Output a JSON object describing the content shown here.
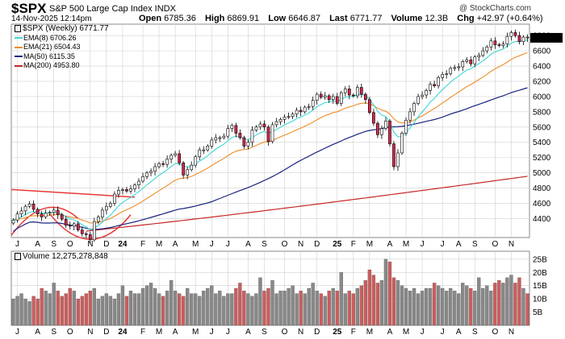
{
  "header": {
    "symbol": "$SPX",
    "name": "S&P 500 Large Cap Index  INDX",
    "copyright": "@ StockCharts.com",
    "date": "14-Nov-2025 12:14pm",
    "open_label": "Open",
    "open": "6785.36",
    "high_label": "High",
    "high": "6869.91",
    "low_label": "Low",
    "low": "6646.87",
    "last_label": "Last",
    "last": "6771.77",
    "volume_label": "Volume",
    "volume": "12.3B",
    "chg_label": "Chg",
    "chg": "+42.97 (+0.64%)"
  },
  "legend": {
    "main": "$SPX (Weekly) 6771.77",
    "ema8": "EMA(8) 6706.26",
    "ema21": "EMA(21) 6504.43",
    "ma50": "MA(50) 6115.35",
    "ma200": "MA(200) 4953.80"
  },
  "volume_legend": "Volume 12,275,278,848",
  "colors": {
    "up_candle": "#ffffff",
    "down_candle": "#d4264a",
    "ema8": "#3fd6d6",
    "ema21": "#f08c28",
    "ma50": "#1a237e",
    "ma200": "#c62828",
    "trendline": "#e53935",
    "grid": "#d0d0d0",
    "vol_up": "#888888",
    "vol_down": "#cd5c5c",
    "last_marker": "#f2c100"
  },
  "chart_data": {
    "type": "candlestick",
    "price_axis": {
      "ticks": [
        4400,
        4600,
        4800,
        5000,
        5200,
        5400,
        5600,
        5800,
        6000,
        6200,
        6400,
        6600,
        6800
      ],
      "range": [
        4150,
        6950
      ]
    },
    "volume_axis": {
      "ticks": [
        "5B",
        "10B",
        "15B",
        "20B",
        "25B"
      ],
      "values": [
        5,
        10,
        15,
        20,
        25
      ],
      "range": [
        0,
        28
      ]
    },
    "x_labels": [
      "J",
      "A",
      "S",
      "O",
      "N",
      "D",
      "24",
      "F",
      "M",
      "A",
      "M",
      "J",
      "J",
      "A",
      "S",
      "O",
      "N",
      "D",
      "25",
      "F",
      "M",
      "A",
      "M",
      "J",
      "J",
      "A",
      "S",
      "O",
      "N"
    ],
    "x_label_weeks": [
      1,
      6,
      10,
      14,
      19,
      23,
      27,
      32,
      36,
      40,
      45,
      49,
      53,
      58,
      62,
      67,
      71,
      75,
      80,
      84,
      88,
      93,
      97,
      101,
      106,
      110,
      114,
      119,
      123
    ],
    "num_weeks": 128,
    "closes": [
      4380,
      4460,
      4500,
      4560,
      4590,
      4520,
      4460,
      4420,
      4470,
      4480,
      4510,
      4450,
      4390,
      4310,
      4300,
      4330,
      4250,
      4200,
      4190,
      4120,
      4360,
      4420,
      4510,
      4560,
      4600,
      4720,
      4770,
      4780,
      4760,
      4790,
      4840,
      4890,
      4950,
      5000,
      5020,
      5080,
      5120,
      5110,
      5180,
      5230,
      5250,
      5130,
      4970,
      5040,
      5100,
      5210,
      5300,
      5300,
      5350,
      5430,
      5460,
      5460,
      5480,
      5580,
      5620,
      5520,
      5460,
      5350,
      5400,
      5560,
      5600,
      5640,
      5600,
      5410,
      5630,
      5670,
      5700,
      5730,
      5740,
      5770,
      5820,
      5800,
      5860,
      5870,
      5950,
      6030,
      5990,
      6010,
      5960,
      6000,
      5910,
      6050,
      6100,
      6020,
      6010,
      6120,
      6030,
      5960,
      5790,
      5650,
      5500,
      5580,
      5680,
      5380,
      5080,
      5260,
      5520,
      5690,
      5800,
      5910,
      6000,
      6020,
      6080,
      6160,
      6140,
      6250,
      6290,
      6300,
      6370,
      6380,
      6390,
      6460,
      6480,
      6430,
      6520,
      6540,
      6600,
      6650,
      6730,
      6680,
      6670,
      6690,
      6790,
      6840,
      6800,
      6720,
      6780,
      6771
    ],
    "ema8_last": 6706.26,
    "ema21_last": 6504.43,
    "ma50_last": 6115.35,
    "ma200_last": 4953.8,
    "volume_billions": [
      10,
      11,
      12,
      10,
      9,
      11,
      10,
      14,
      13,
      12,
      16,
      13,
      11,
      12,
      14,
      13,
      10,
      11,
      12,
      13,
      14,
      10,
      11,
      12,
      11,
      10,
      12,
      15,
      11,
      13,
      12,
      12,
      14,
      15,
      16,
      14,
      12,
      11,
      13,
      17,
      13,
      12,
      11,
      14,
      12,
      12,
      11,
      13,
      14,
      15,
      12,
      13,
      11,
      12,
      12,
      14,
      16,
      13,
      12,
      11,
      12,
      18,
      13,
      14,
      17,
      12,
      13,
      13,
      14,
      15,
      12,
      13,
      12,
      14,
      16,
      13,
      12,
      11,
      13,
      14,
      13,
      20,
      12,
      13,
      12,
      14,
      15,
      17,
      21,
      19,
      16,
      17,
      25,
      24,
      18,
      17,
      15,
      14,
      13,
      14,
      12,
      13,
      14,
      14,
      16,
      15,
      14,
      13,
      14,
      13,
      12,
      16,
      15,
      14,
      13,
      18,
      14,
      15,
      13,
      16,
      17,
      16,
      18,
      19,
      16,
      18,
      14,
      12
    ]
  }
}
